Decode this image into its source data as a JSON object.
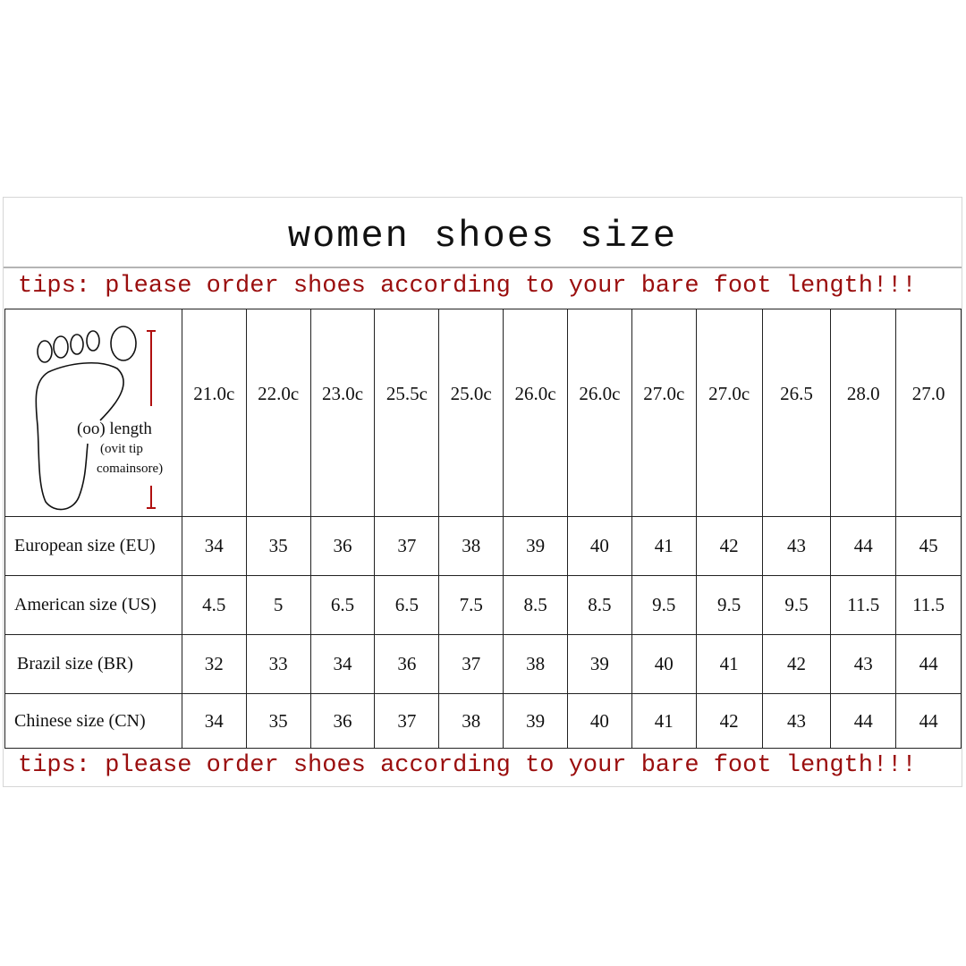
{
  "title": "women shoes size",
  "tips": "tips: please order shoes according to your bare foot length!!!",
  "foot_caption": {
    "line1": "(oo) length",
    "line2": "(ovit tip",
    "line3": "comainsore)"
  },
  "accent_color": "#9a0e0e",
  "header": [
    "21.0c",
    "22.0c",
    "23.0c",
    "25.5c",
    "25.0c",
    "26.0c",
    "26.0c",
    "27.0c",
    "27.0c",
    "26.5",
    "28.0",
    "27.0"
  ],
  "rows": [
    {
      "label": "European size (EU)",
      "values": [
        "34",
        "35",
        "36",
        "37",
        "38",
        "39",
        "40",
        "41",
        "42",
        "43",
        "44",
        "45"
      ]
    },
    {
      "label": "American size (US)",
      "values": [
        "4.5",
        "5",
        "6.5",
        "6.5",
        "7.5",
        "8.5",
        "8.5",
        "9.5",
        "9.5",
        "9.5",
        "11.5",
        "11.5"
      ]
    },
    {
      "label": "Brazil size (BR)",
      "values": [
        "32",
        "33",
        "34",
        "36",
        "37",
        "38",
        "39",
        "40",
        "41",
        "42",
        "43",
        "44"
      ]
    },
    {
      "label": "Chinese size (CN)",
      "values": [
        "34",
        "35",
        "36",
        "37",
        "38",
        "39",
        "40",
        "41",
        "42",
        "43",
        "44",
        "44"
      ]
    }
  ]
}
